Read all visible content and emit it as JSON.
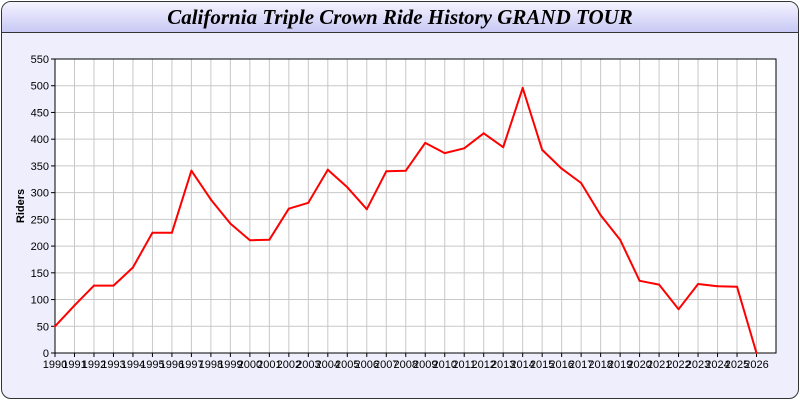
{
  "chart_data": {
    "type": "line",
    "title": "California Triple Crown Ride History GRAND TOUR",
    "xlabel": "",
    "ylabel": "Riders",
    "ylim": [
      0,
      550
    ],
    "xlim": [
      1990,
      2027
    ],
    "yticks": [
      0,
      50,
      100,
      150,
      200,
      250,
      300,
      350,
      400,
      450,
      500,
      550
    ],
    "grid": true,
    "line_color": "#ff0000",
    "x": [
      1990,
      1991,
      1992,
      1993,
      1994,
      1995,
      1996,
      1997,
      1998,
      1999,
      2000,
      2001,
      2002,
      2003,
      2004,
      2005,
      2006,
      2007,
      2008,
      2009,
      2010,
      2011,
      2012,
      2013,
      2014,
      2015,
      2016,
      2017,
      2018,
      2019,
      2020,
      2021,
      2022,
      2023,
      2024,
      2025,
      2026
    ],
    "values": [
      50,
      89,
      126,
      126,
      160,
      225,
      225,
      341,
      287,
      242,
      211,
      212,
      270,
      281,
      343,
      310,
      269,
      340,
      341,
      393,
      374,
      383,
      411,
      385,
      496,
      380,
      345,
      318,
      258,
      212,
      135,
      128,
      82,
      129,
      125,
      124,
      0
    ]
  }
}
